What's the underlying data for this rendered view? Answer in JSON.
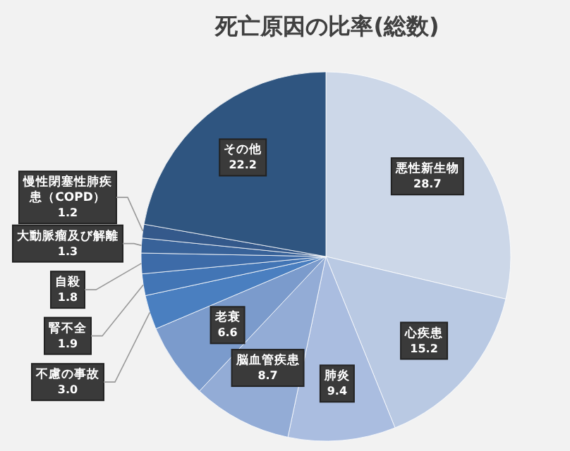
{
  "chart_data": {
    "type": "pie",
    "title": "死亡原因の比率(総数)",
    "categories": [
      "悪性新生物",
      "心疾患",
      "肺炎",
      "脳血管疾患",
      "老衰",
      "不慮の事故",
      "腎不全",
      "自殺",
      "大動脈瘤及び解離",
      "慢性閉塞性肺疾患（COPD）",
      "その他"
    ],
    "values": [
      28.7,
      15.2,
      9.4,
      8.7,
      6.6,
      3.0,
      1.9,
      1.8,
      1.3,
      1.2,
      22.2
    ],
    "value_labels": [
      "28.7",
      "15.2",
      "9.4",
      "8.7",
      "6.6",
      "3.0",
      "1.9",
      "1.8",
      "1.3",
      "1.2",
      "22.2"
    ],
    "colors": [
      "#ccd7e8",
      "#b9c9e3",
      "#aabde0",
      "#93acd6",
      "#7b9bcc",
      "#4a7fc0",
      "#4275b5",
      "#3d6ba8",
      "#386299",
      "#34598b",
      "#2f5580"
    ]
  }
}
